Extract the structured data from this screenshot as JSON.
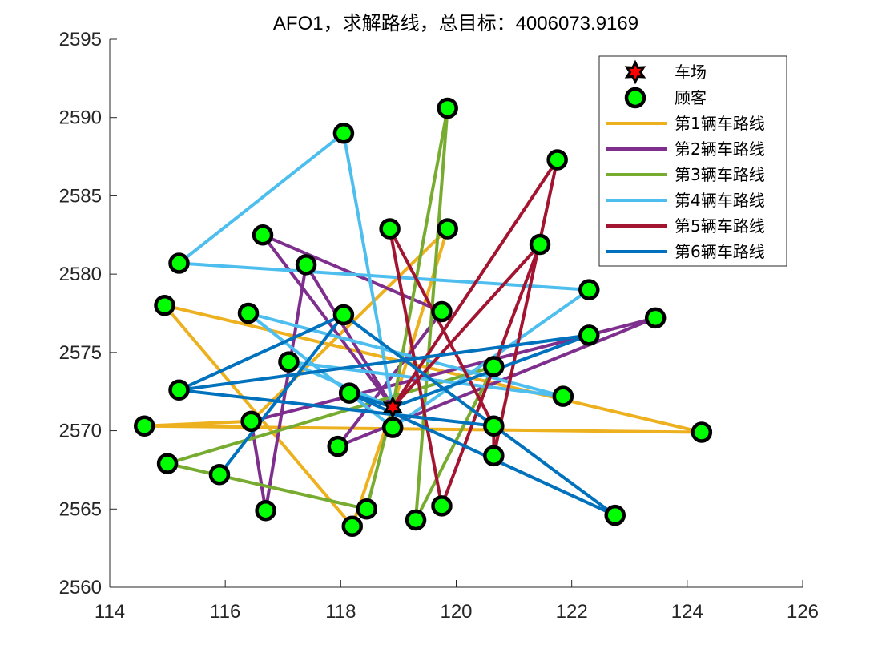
{
  "chart_data": {
    "type": "line",
    "title": "AFO1，求解路线，总目标：4006073.9169",
    "xlabel": "",
    "ylabel": "",
    "xlim": [
      114,
      126
    ],
    "ylim": [
      2560,
      2595
    ],
    "xticks": [
      114,
      116,
      118,
      120,
      122,
      124,
      126
    ],
    "yticks": [
      2560,
      2565,
      2570,
      2575,
      2580,
      2585,
      2590,
      2595
    ],
    "grid": false,
    "legend_position": "top-right",
    "depot": {
      "name": "车场",
      "x": 118.9,
      "y": 2571.5,
      "color": "#ff0000"
    },
    "customers": {
      "name": "顾客",
      "color": "#00ff00",
      "points": [
        [
          118.05,
          2589.0
        ],
        [
          119.85,
          2590.6
        ],
        [
          121.75,
          2587.3
        ],
        [
          116.65,
          2582.5
        ],
        [
          118.85,
          2582.9
        ],
        [
          119.85,
          2582.9
        ],
        [
          121.45,
          2581.9
        ],
        [
          115.2,
          2580.7
        ],
        [
          117.4,
          2580.6
        ],
        [
          122.3,
          2579.0
        ],
        [
          114.95,
          2578.0
        ],
        [
          116.4,
          2577.5
        ],
        [
          118.05,
          2577.4
        ],
        [
          119.75,
          2577.6
        ],
        [
          123.45,
          2577.2
        ],
        [
          122.3,
          2576.1
        ],
        [
          117.1,
          2574.4
        ],
        [
          120.65,
          2574.1
        ],
        [
          115.2,
          2572.6
        ],
        [
          118.15,
          2572.4
        ],
        [
          121.85,
          2572.2
        ],
        [
          116.45,
          2570.6
        ],
        [
          118.9,
          2570.2
        ],
        [
          120.65,
          2570.3
        ],
        [
          114.6,
          2570.3
        ],
        [
          124.25,
          2569.9
        ],
        [
          117.95,
          2569.0
        ],
        [
          120.65,
          2568.4
        ],
        [
          115.0,
          2567.9
        ],
        [
          115.9,
          2567.2
        ],
        [
          116.7,
          2564.9
        ],
        [
          118.45,
          2565.0
        ],
        [
          119.3,
          2564.3
        ],
        [
          119.75,
          2565.2
        ],
        [
          118.2,
          2563.9
        ],
        [
          122.75,
          2564.6
        ]
      ]
    },
    "series": [
      {
        "name": "第1辆车路线",
        "color": "#EDB120",
        "points": [
          [
            118.9,
            2571.5
          ],
          [
            119.85,
            2582.9
          ],
          [
            116.45,
            2570.6
          ],
          [
            114.6,
            2570.3
          ],
          [
            124.25,
            2569.9
          ],
          [
            114.95,
            2578.0
          ],
          [
            118.2,
            2563.9
          ],
          [
            118.9,
            2571.5
          ]
        ]
      },
      {
        "name": "第2辆车路线",
        "color": "#7E2F8E",
        "points": [
          [
            118.9,
            2571.5
          ],
          [
            117.4,
            2580.6
          ],
          [
            116.7,
            2564.9
          ],
          [
            116.45,
            2570.6
          ],
          [
            123.45,
            2577.2
          ],
          [
            117.95,
            2569.0
          ],
          [
            119.75,
            2577.6
          ],
          [
            116.65,
            2582.5
          ],
          [
            118.9,
            2571.5
          ]
        ]
      },
      {
        "name": "第3辆车路线",
        "color": "#77AC30",
        "points": [
          [
            118.9,
            2571.5
          ],
          [
            119.85,
            2590.6
          ],
          [
            119.3,
            2564.3
          ],
          [
            120.65,
            2574.1
          ],
          [
            115.0,
            2567.9
          ],
          [
            118.45,
            2565.0
          ],
          [
            118.9,
            2571.5
          ]
        ]
      },
      {
        "name": "第4辆车路线",
        "color": "#4DBEEE",
        "points": [
          [
            118.9,
            2571.5
          ],
          [
            118.05,
            2589.0
          ],
          [
            115.2,
            2580.7
          ],
          [
            122.3,
            2579.0
          ],
          [
            118.9,
            2570.2
          ],
          [
            116.4,
            2577.5
          ],
          [
            121.85,
            2572.2
          ],
          [
            117.1,
            2574.4
          ],
          [
            118.9,
            2571.5
          ]
        ]
      },
      {
        "name": "第5辆车路线",
        "color": "#A2142F",
        "points": [
          [
            118.9,
            2571.5
          ],
          [
            121.75,
            2587.3
          ],
          [
            120.65,
            2568.4
          ],
          [
            120.65,
            2570.3
          ],
          [
            118.85,
            2582.9
          ],
          [
            119.75,
            2565.2
          ],
          [
            121.45,
            2581.9
          ],
          [
            118.9,
            2571.5
          ]
        ]
      },
      {
        "name": "第6辆车路线",
        "color": "#0072BD",
        "points": [
          [
            118.9,
            2571.5
          ],
          [
            118.15,
            2572.4
          ],
          [
            122.75,
            2564.6
          ],
          [
            118.05,
            2577.4
          ],
          [
            115.9,
            2567.2
          ],
          [
            118.05,
            2577.4
          ],
          [
            115.2,
            2572.6
          ],
          [
            120.65,
            2570.3
          ],
          [
            115.2,
            2572.6
          ],
          [
            122.3,
            2576.1
          ],
          [
            118.9,
            2571.5
          ]
        ]
      }
    ]
  }
}
